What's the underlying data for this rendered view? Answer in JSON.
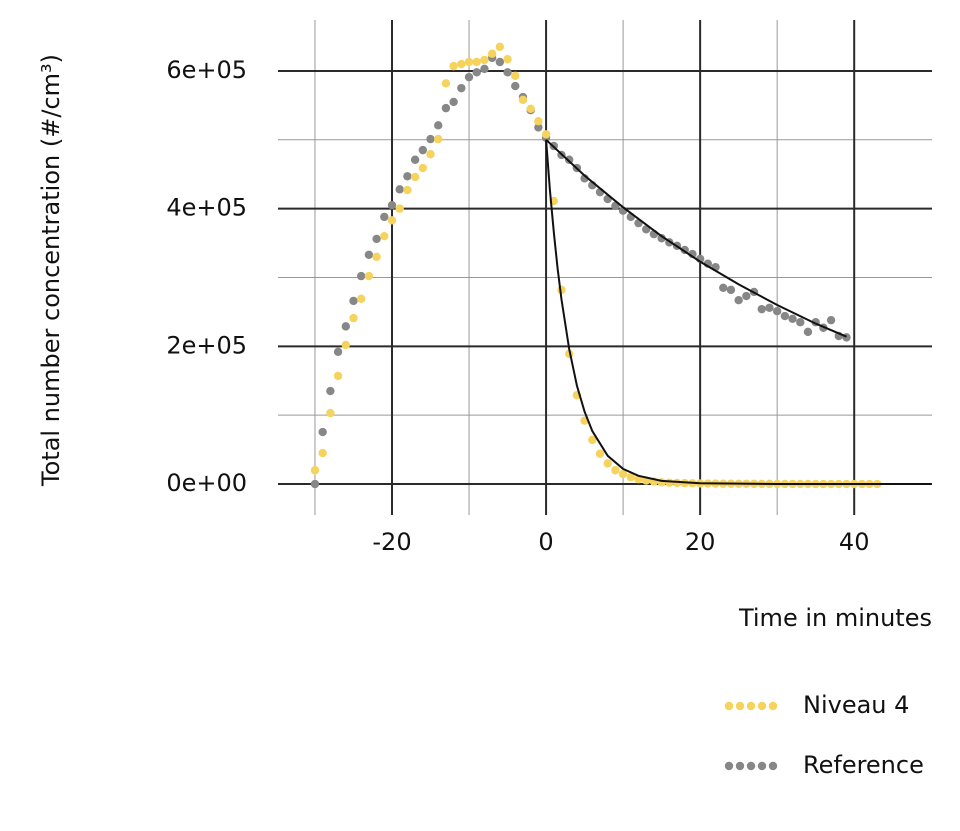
{
  "chart_data": {
    "type": "scatter",
    "x_label": "Time in minutes",
    "y_label": "Total number concentration (#/cm³)",
    "xlim": [
      -34.8,
      50.1
    ],
    "ylim": [
      -45000,
      674000
    ],
    "xticks": [
      -20,
      0,
      20,
      40
    ],
    "yticks": [
      {
        "value": 0,
        "label": "0e+00"
      },
      {
        "value": 200000,
        "label": "2e+05"
      },
      {
        "value": 400000,
        "label": "4e+05"
      },
      {
        "value": 600000,
        "label": "6e+05"
      }
    ],
    "x_minor_ticks": [
      -30,
      -10,
      10,
      30
    ],
    "y_minor_ticks": [
      100000,
      300000,
      500000
    ],
    "grid": true,
    "legend": "bottom-right",
    "series": [
      {
        "name": "Niveau 4",
        "color": "#f6d35c",
        "x": [
          -30,
          -29,
          -28,
          -27,
          -26,
          -25,
          -24,
          -23,
          -22,
          -21,
          -20,
          -19,
          -18,
          -17,
          -16,
          -15,
          -14,
          -13,
          -12,
          -11,
          -10,
          -9,
          -8,
          -7,
          -6,
          -5,
          -4,
          -3,
          -2,
          -1,
          0,
          1,
          2,
          3,
          4,
          5,
          6,
          7,
          8,
          9,
          10,
          11,
          12,
          13,
          14,
          15,
          16,
          17,
          18,
          19,
          20,
          21,
          22,
          23,
          24,
          25,
          26,
          27,
          28,
          29,
          30,
          31,
          32,
          33,
          34,
          35,
          36,
          37,
          38,
          39,
          40,
          41,
          42,
          43
        ],
        "values": [
          20000,
          45000,
          103000,
          157000,
          202000,
          241000,
          269000,
          302000,
          330000,
          360000,
          383000,
          400000,
          427000,
          446000,
          459000,
          479000,
          501000,
          582000,
          607000,
          610000,
          613000,
          613000,
          616000,
          625000,
          635000,
          617000,
          593000,
          558000,
          545000,
          527000,
          508000,
          411000,
          282000,
          189000,
          129000,
          92000,
          64000,
          44000,
          30000,
          20000,
          14500,
          10000,
          7000,
          5000,
          3500,
          2500,
          2000,
          1600,
          1300,
          1000,
          800,
          700,
          600,
          500,
          400,
          300,
          300,
          200,
          200,
          200,
          100,
          100,
          100,
          100,
          100,
          0,
          0,
          0,
          0,
          0,
          0,
          0,
          0,
          0
        ]
      },
      {
        "name": "Reference",
        "color": "#878787",
        "x": [
          -30,
          -29,
          -28,
          -27,
          -26,
          -25,
          -24,
          -23,
          -22,
          -21,
          -20,
          -19,
          -18,
          -17,
          -16,
          -15,
          -14,
          -13,
          -12,
          -11,
          -10,
          -9,
          -8,
          -7,
          -6,
          -5,
          -4,
          -3,
          -2,
          -1,
          0,
          1,
          2,
          3,
          4,
          5,
          6,
          7,
          8,
          9,
          10,
          11,
          12,
          13,
          14,
          15,
          16,
          17,
          18,
          19,
          20,
          21,
          22,
          23,
          24,
          25,
          26,
          27,
          28,
          29,
          30,
          31,
          32,
          33,
          34,
          35,
          36,
          37,
          38,
          39
        ],
        "values": [
          0,
          75500,
          135000,
          192000,
          229000,
          266000,
          302000,
          333000,
          356000,
          388000,
          405000,
          428000,
          447000,
          471000,
          485000,
          501000,
          521000,
          546000,
          555000,
          575000,
          591000,
          598000,
          603000,
          619000,
          613000,
          598000,
          578000,
          562000,
          543000,
          518000,
          503000,
          491000,
          478000,
          471000,
          459000,
          444000,
          434000,
          424000,
          414000,
          404000,
          397000,
          388000,
          379000,
          370000,
          363000,
          357000,
          351000,
          346000,
          340000,
          334000,
          327000,
          320000,
          315000,
          285000,
          282000,
          267000,
          273000,
          279000,
          254000,
          256000,
          251000,
          244000,
          240000,
          235000,
          221000,
          235000,
          227000,
          238000,
          215000,
          213000
        ]
      }
    ],
    "fits": [
      {
        "color": "#111111",
        "x": [
          0,
          0.5,
          1,
          1.5,
          2,
          3,
          4,
          5,
          6,
          8,
          10,
          12,
          15,
          20,
          30,
          40,
          50
        ],
        "values": [
          500000,
          427000,
          366000,
          313000,
          268000,
          196000,
          143000,
          105000,
          77000,
          41000,
          22000,
          12000,
          4600,
          1000,
          0,
          0,
          0
        ]
      },
      {
        "color": "#111111",
        "x": [
          0,
          5,
          10,
          15,
          20,
          25,
          30,
          35,
          39
        ],
        "values": [
          500000,
          448000,
          402000,
          360000,
          323000,
          290000,
          260000,
          233000,
          214000
        ]
      }
    ]
  }
}
